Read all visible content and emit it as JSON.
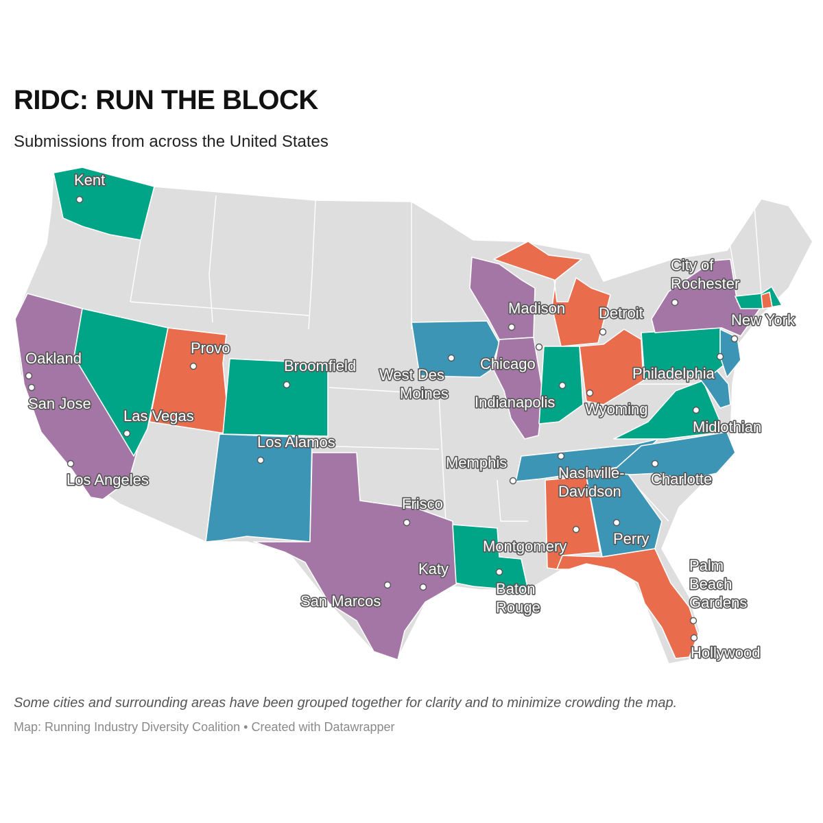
{
  "header": {
    "title": "RIDC: RUN THE BLOCK",
    "subtitle": "Submissions from across the United States"
  },
  "footer": {
    "note": "Some cities and surrounding areas have been grouped together for clarity and to minimize crowding the map.",
    "source": "Map: Running Industry Diversity Coalition • Created with Datawrapper"
  },
  "colors": {
    "background_state": "#dedede",
    "teal": "#00a487",
    "purple": "#a376a6",
    "orange": "#e96d4d",
    "blue": "#3d95b6",
    "label_stroke": "#555555"
  },
  "states": [
    {
      "name": "Washington",
      "color": "teal"
    },
    {
      "name": "California",
      "color": "purple"
    },
    {
      "name": "Nevada",
      "color": "teal"
    },
    {
      "name": "Utah",
      "color": "orange"
    },
    {
      "name": "Colorado",
      "color": "teal"
    },
    {
      "name": "New Mexico",
      "color": "blue"
    },
    {
      "name": "Texas",
      "color": "purple"
    },
    {
      "name": "Louisiana",
      "color": "teal"
    },
    {
      "name": "Iowa",
      "color": "blue"
    },
    {
      "name": "Wisconsin",
      "color": "purple"
    },
    {
      "name": "Illinois",
      "color": "purple"
    },
    {
      "name": "Michigan",
      "color": "orange"
    },
    {
      "name": "Indiana",
      "color": "teal"
    },
    {
      "name": "Ohio",
      "color": "orange"
    },
    {
      "name": "Tennessee",
      "color": "blue"
    },
    {
      "name": "Alabama",
      "color": "orange"
    },
    {
      "name": "Georgia",
      "color": "blue"
    },
    {
      "name": "Florida",
      "color": "orange"
    },
    {
      "name": "North Carolina",
      "color": "blue"
    },
    {
      "name": "Virginia",
      "color": "teal"
    },
    {
      "name": "Maryland",
      "color": "blue"
    },
    {
      "name": "Pennsylvania",
      "color": "teal"
    },
    {
      "name": "New Jersey",
      "color": "blue"
    },
    {
      "name": "New York",
      "color": "purple"
    },
    {
      "name": "Massachusetts",
      "color": "teal"
    },
    {
      "name": "Rhode Island",
      "color": "orange"
    }
  ],
  "cities": [
    {
      "name": "Kent"
    },
    {
      "name": "Oakland"
    },
    {
      "name": "San Jose"
    },
    {
      "name": "Los Angeles"
    },
    {
      "name": "Las Vegas"
    },
    {
      "name": "Provo"
    },
    {
      "name": "Broomfield"
    },
    {
      "name": "Los Alamos"
    },
    {
      "name": "Frisco"
    },
    {
      "name": "Katy"
    },
    {
      "name": "San Marcos"
    },
    {
      "name": "West Des Moines"
    },
    {
      "name": "Madison"
    },
    {
      "name": "Chicago"
    },
    {
      "name": "Indianapolis"
    },
    {
      "name": "Detroit"
    },
    {
      "name": "Wyoming"
    },
    {
      "name": "Memphis"
    },
    {
      "name": "Nashville-Davidson"
    },
    {
      "name": "Montgomery"
    },
    {
      "name": "Baton Rouge"
    },
    {
      "name": "Perry"
    },
    {
      "name": "Charlotte"
    },
    {
      "name": "Midlothian"
    },
    {
      "name": "Philadelphia"
    },
    {
      "name": "New York"
    },
    {
      "name": "City of Rochester"
    },
    {
      "name": "Palm Beach Gardens"
    },
    {
      "name": "Hollywood"
    }
  ]
}
